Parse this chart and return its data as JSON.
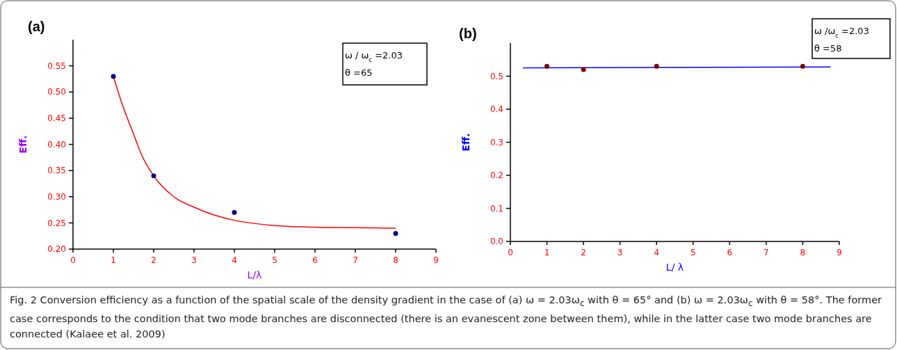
{
  "chart_data": [
    {
      "type": "scatter",
      "title": "(a)",
      "xlabel": "L/λ",
      "ylabel": "Eff.",
      "xlim": [
        0,
        9
      ],
      "xticks": [
        0,
        1,
        2,
        3,
        4,
        5,
        6,
        7,
        8,
        9
      ],
      "ylim": [
        0.2,
        0.6
      ],
      "yticks": [
        {
          "value": 0.2,
          "label": "0.20"
        },
        {
          "value": 0.25,
          "label": "0.25"
        },
        {
          "value": 0.3,
          "label": "0.30"
        },
        {
          "value": 0.35,
          "label": "0.35"
        },
        {
          "value": 0.4,
          "label": "0.40"
        },
        {
          "value": 0.45,
          "label": "0.45"
        },
        {
          "value": 0.5,
          "label": "0.50"
        },
        {
          "value": 0.55,
          "label": "0.55"
        }
      ],
      "line_style": "solid",
      "series": [
        {
          "type": "line",
          "marker": "none",
          "color": "#ff0000",
          "x": [
            1,
            1.25,
            1.5,
            1.7,
            2,
            2.5,
            3,
            3.5,
            4,
            4.5,
            5,
            6,
            7,
            8
          ],
          "values": [
            0.53,
            0.47,
            0.42,
            0.38,
            0.34,
            0.3,
            0.28,
            0.265,
            0.255,
            0.249,
            0.245,
            0.242,
            0.241,
            0.24
          ]
        },
        {
          "marker": "circle",
          "color": "#000080",
          "x": [
            1,
            2,
            4,
            8
          ],
          "values": [
            0.53,
            0.34,
            0.27,
            0.23
          ]
        }
      ],
      "annotations": [
        "ω / ω$_{c}$=2.03",
        "θ =65",
        "Fig. 2  Conversion efficiency as a function of the spatial scale of the density gradient in the case of (a) ω = 2.03ω$_{c}$ with θ = 65° and (b) ω = 2.03ω$_{c}$ with θ = 58°. The former case corresponds to the condition that two mode branches are disconnected (there is an evanescent zone between them), while in the latter case two mode branches are connected (Kalaee et al. 2009)"
      ]
    },
    {
      "type": "scatter",
      "title": "(b)",
      "xlabel": "L/ λ",
      "ylabel": "Eff.",
      "xlim": [
        0,
        9
      ],
      "xticks": [
        0,
        1,
        2,
        3,
        4,
        5,
        6,
        7,
        8,
        9
      ],
      "ylim": [
        0,
        0.6
      ],
      "yticks": [
        {
          "value": 0,
          "label": "0.0"
        },
        0.1,
        0.2,
        0.3,
        0.4,
        0.5
      ],
      "line_style": "solid",
      "series": [
        {
          "type": "line",
          "marker": "none",
          "color": "#0000ff",
          "x": [
            0.35,
            8.75
          ],
          "values": [
            0.525,
            0.528
          ]
        },
        {
          "marker": "circle",
          "color": "#800000",
          "x": [
            1,
            2,
            4,
            8
          ],
          "values": [
            0.53,
            0.52,
            0.53,
            0.53
          ]
        }
      ],
      "annotations": [
        "ω /ω$_{c}$=2.03",
        "θ =58"
      ]
    }
  ]
}
